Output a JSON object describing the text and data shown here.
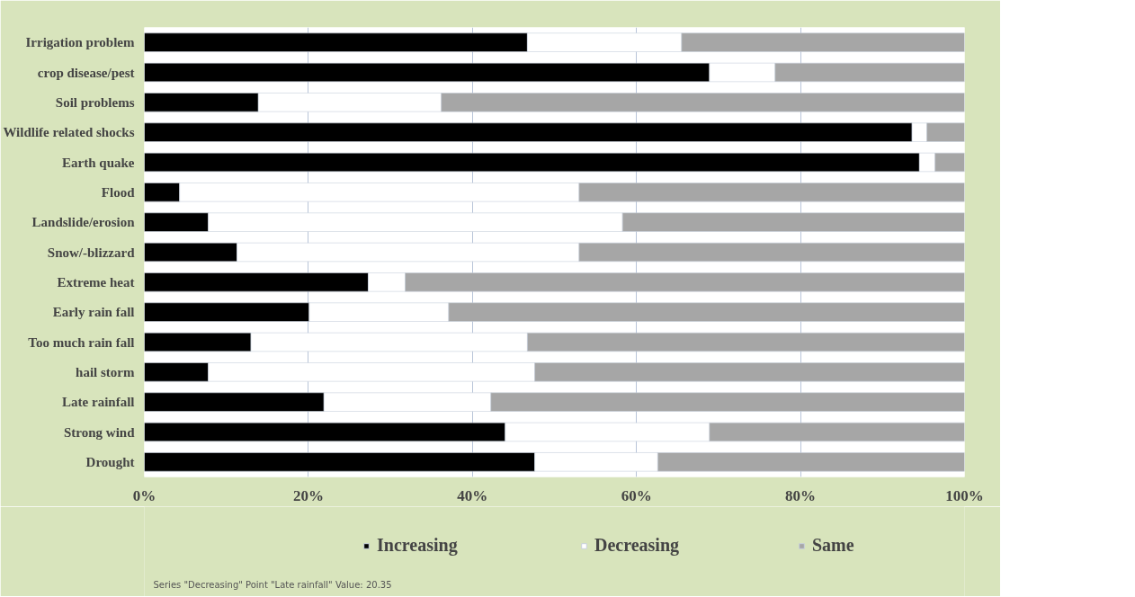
{
  "chart_data": {
    "type": "bar",
    "orientation": "horizontal",
    "stacked": true,
    "categories": [
      "Irrigation problem",
      "crop disease/pest",
      "Soil problems",
      "Wildlife related shocks",
      "Earth quake",
      "Flood",
      "Landslide/erosion",
      "Snow/-blizzard",
      "Extreme heat",
      "Early rain fall",
      "Too much rain fall",
      "hail storm",
      "Late rainfall",
      "Strong wind",
      "Drought"
    ],
    "series": [
      {
        "name": "Increasing",
        "color": "#000000",
        "values": [
          46.7,
          68.9,
          13.9,
          93.6,
          94.5,
          4.3,
          7.8,
          11.3,
          27.3,
          20.1,
          13.0,
          7.8,
          21.9,
          44.0,
          47.6
        ]
      },
      {
        "name": "Decreasing",
        "color": "#ffffff",
        "values": [
          18.8,
          8.0,
          22.3,
          1.8,
          1.9,
          48.7,
          50.5,
          41.7,
          4.5,
          17.0,
          33.7,
          39.8,
          20.35,
          24.9,
          15.0
        ]
      },
      {
        "name": "Same",
        "color": "#a6a6a6",
        "values": [
          34.5,
          23.1,
          63.8,
          4.6,
          3.6,
          47.0,
          41.7,
          47.0,
          68.2,
          62.9,
          53.3,
          52.4,
          57.75,
          31.1,
          37.4
        ]
      }
    ],
    "xlim": [
      0,
      100
    ],
    "xticks": [
      {
        "value": 0,
        "label": "0%"
      },
      {
        "value": 20,
        "label": "20%"
      },
      {
        "value": 40,
        "label": "40%"
      },
      {
        "value": 60,
        "label": "60%"
      },
      {
        "value": 80,
        "label": "80%"
      },
      {
        "value": 100,
        "label": "100%"
      }
    ],
    "grid": "x",
    "legend": "bottom",
    "annotations": [
      "Series \"Decreasing\" Point \"Late rainfall\" Value: 20.35"
    ]
  }
}
